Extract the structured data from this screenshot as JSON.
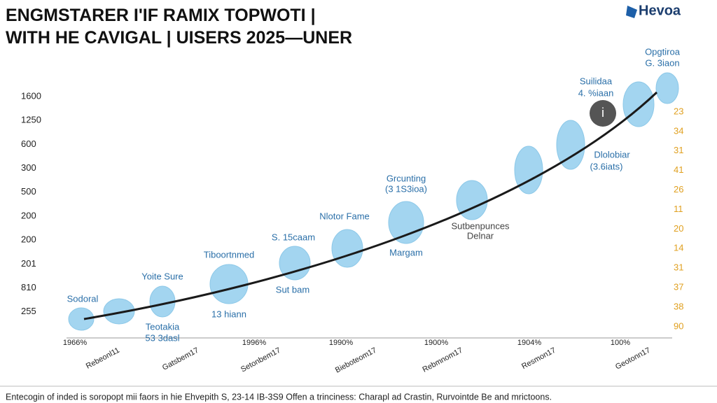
{
  "header": {
    "title_line1": "ENGMSTARER I'IF RAMIX TOPWOTI |",
    "title_line2": "WITH HE CAVIGAL | UISERS 2025—UNER",
    "logo": "Hevoa"
  },
  "chart": {
    "left_axis_labels": [
      "1600",
      "1250",
      "600",
      "300",
      "500",
      "200",
      "200",
      "201",
      "810",
      "255"
    ],
    "right_axis_labels": [
      "23",
      "34",
      "31",
      "41",
      "26",
      "11",
      "20",
      "14",
      "31",
      "37",
      "38",
      "90"
    ],
    "x_labels_top": [
      "1966%",
      "1996%",
      "1990%",
      "1900%",
      "1904%",
      "100%"
    ],
    "x_labels_rotated": [
      "Rebeonl11",
      "Gatsbem17",
      "Setonbem17",
      "Bieboteom17",
      "Rebmnom17",
      "Resmon17",
      "Geotonn17"
    ],
    "annotations": [
      "Opgtiroa",
      "G. 3iaon",
      "Suilidaa",
      "4. %iaan",
      "Dlolobiar",
      "(3.6iats)",
      "Grcunting",
      "(3 1S3ioa)",
      "Nlotor Fame",
      "Sutbenpunces",
      "Delnar",
      "S. 15caam",
      "Margam",
      "Tiboortnmed",
      "Sut bam",
      "13 hiann",
      "Yoite Sure",
      "Sodoral",
      "Teotakia",
      "53 3dasl"
    ],
    "marker": "i"
  },
  "footer": "Entecogin of inded is soropopt mii faors in hie Ehvepith S, 23-14 IB-3S9 Offen a trinciness: Charapl ad Crastin, Rurvointde Be and mrictoons."
}
